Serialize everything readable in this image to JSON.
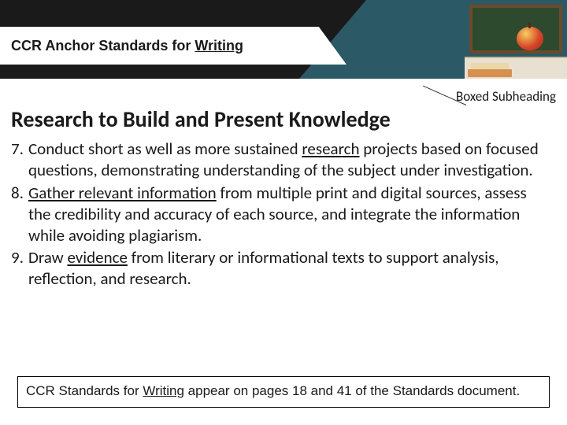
{
  "header": {
    "title_prefix": "CCR Anchor Standards for ",
    "title_underlined": "Writing"
  },
  "annotation": "Boxed Subheading",
  "section_title": "Research to Build and Present Knowledge",
  "items": [
    {
      "num": "7.",
      "pre": "Conduct short as well as more sustained ",
      "ul": "research",
      "post": " projects based on focused questions, demonstrating understanding of the subject under investigation."
    },
    {
      "num": "8.",
      "pre": "",
      "ul": "Gather relevant information",
      "post": " from multiple print and digital sources, assess the credibility and accuracy of each source, and integrate the information while avoiding plagiarism."
    },
    {
      "num": "9.",
      "pre": "Draw ",
      "ul": "evidence",
      "post": " from literary or informational texts to support analysis, reflection, and research."
    }
  ],
  "footer": {
    "pre": "CCR Standards for ",
    "ul": "Writing",
    "post": " appear on pages 18 and 41 of the Standards document."
  },
  "colors": {
    "band": "#1a1a1a",
    "diag": "#2b5966"
  }
}
